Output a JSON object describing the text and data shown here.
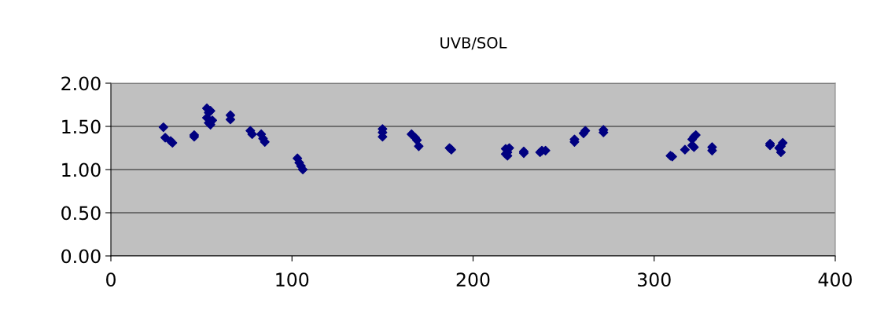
{
  "chart_data": {
    "type": "scatter",
    "title": "UVB/SOL",
    "xlim": [
      0,
      400
    ],
    "xticks": [
      0,
      100,
      200,
      300,
      400
    ],
    "ylim": [
      0,
      2
    ],
    "yticks": [
      {
        "value": 0,
        "label": "0.00"
      },
      {
        "value": 0.5,
        "label": "0.50"
      },
      {
        "value": 1,
        "label": "1.00"
      },
      {
        "value": 1.5,
        "label": "1.50"
      },
      {
        "value": 2,
        "label": "2.00"
      }
    ],
    "grid": "y",
    "marker": "diamond",
    "legend": false,
    "series": [
      {
        "color": "#000080",
        "x": [
          29,
          30,
          33,
          34,
          46,
          46,
          53,
          54,
          53,
          55,
          54,
          56,
          55,
          66,
          66,
          77,
          78,
          83,
          84,
          85,
          103,
          104,
          106,
          105,
          150,
          150,
          150,
          166,
          168,
          169,
          170,
          187,
          188,
          218,
          218,
          219,
          220,
          219,
          228,
          228,
          237,
          238,
          240,
          256,
          256,
          261,
          262,
          272,
          272,
          310,
          309,
          317,
          321,
          322,
          322,
          323,
          321,
          332,
          332,
          364,
          364,
          370,
          370,
          371,
          369
        ],
        "values": [
          1.49,
          1.37,
          1.33,
          1.31,
          1.4,
          1.38,
          1.71,
          1.66,
          1.6,
          1.68,
          1.54,
          1.57,
          1.52,
          1.63,
          1.58,
          1.45,
          1.41,
          1.41,
          1.36,
          1.32,
          1.13,
          1.08,
          1.0,
          1.04,
          1.47,
          1.43,
          1.38,
          1.41,
          1.37,
          1.34,
          1.27,
          1.25,
          1.23,
          1.24,
          1.18,
          1.16,
          1.25,
          1.2,
          1.21,
          1.19,
          1.2,
          1.22,
          1.22,
          1.35,
          1.32,
          1.42,
          1.45,
          1.46,
          1.43,
          1.15,
          1.16,
          1.23,
          1.28,
          1.26,
          1.38,
          1.4,
          1.35,
          1.26,
          1.22,
          1.3,
          1.28,
          1.2,
          1.27,
          1.31,
          1.25
        ]
      }
    ]
  }
}
